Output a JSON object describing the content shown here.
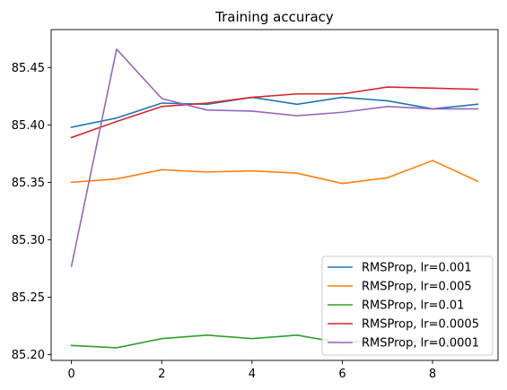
{
  "chart_data": {
    "type": "line",
    "title": "Training accuracy",
    "xlabel": "",
    "ylabel": "",
    "x": [
      0,
      1,
      2,
      3,
      4,
      5,
      6,
      7,
      8,
      9
    ],
    "xlim": [
      -0.45,
      9.45
    ],
    "ylim": [
      85.195,
      85.483
    ],
    "xticks": [
      0,
      2,
      4,
      6,
      8
    ],
    "xtick_labels": [
      "0",
      "2",
      "4",
      "6",
      "8"
    ],
    "yticks": [
      85.2,
      85.25,
      85.3,
      85.35,
      85.4,
      85.45
    ],
    "ytick_labels": [
      "85.20",
      "85.25",
      "85.30",
      "85.35",
      "85.40",
      "85.45"
    ],
    "grid": false,
    "legend_position": "bottom-right",
    "series": [
      {
        "name": "RMSProp, lr=0.001",
        "color": "#1f77b4",
        "values": [
          85.398,
          85.406,
          85.419,
          85.418,
          85.424,
          85.418,
          85.424,
          85.421,
          85.414,
          85.418
        ]
      },
      {
        "name": "RMSProp, lr=0.005",
        "color": "#ff7f0e",
        "values": [
          85.35,
          85.353,
          85.361,
          85.359,
          85.36,
          85.358,
          85.349,
          85.354,
          85.369,
          85.351
        ]
      },
      {
        "name": "RMSProp, lr=0.01",
        "color": "#2ca02c",
        "values": [
          85.208,
          85.206,
          85.214,
          85.217,
          85.214,
          85.217,
          85.21,
          85.214,
          85.21,
          85.21
        ]
      },
      {
        "name": "RMSProp, lr=0.0005",
        "color": "#d62728",
        "values": [
          85.389,
          85.403,
          85.416,
          85.419,
          85.424,
          85.427,
          85.427,
          85.433,
          85.432,
          85.431
        ]
      },
      {
        "name": "RMSProp, lr=0.0001",
        "color": "#9467bd",
        "values": [
          85.277,
          85.466,
          85.423,
          85.413,
          85.412,
          85.408,
          85.411,
          85.416,
          85.414,
          85.414
        ]
      }
    ]
  }
}
